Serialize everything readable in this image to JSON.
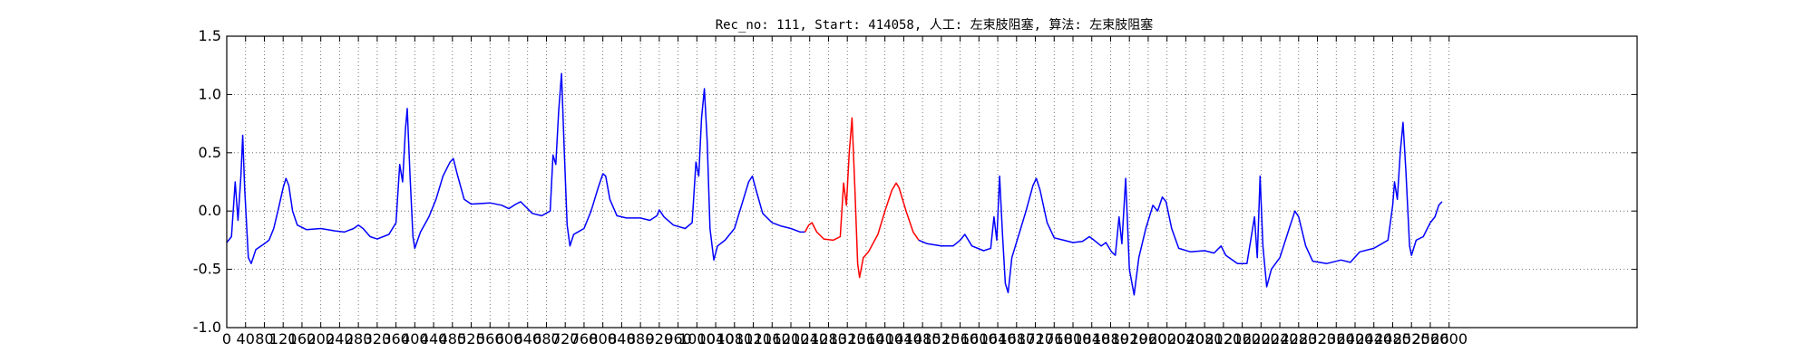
{
  "chart_data": {
    "type": "line",
    "title": "Rec_no: 111, Start: 414058, 人工: 左束肢阻塞, 算法: 左束肢阻塞",
    "xlabel": "",
    "ylabel": "",
    "xlim": [
      0,
      3000
    ],
    "ylim": [
      -1.0,
      1.5
    ],
    "grid": true,
    "grid_style": "dotted",
    "yticks": [
      "-1.0",
      "-0.5",
      "0.0",
      "0.5",
      "1.0",
      "1.5"
    ],
    "xtick_values": [
      0,
      40,
      80,
      120,
      160,
      200,
      240,
      280,
      320,
      360,
      400,
      440,
      480,
      520,
      560,
      600,
      640,
      680,
      720,
      760,
      800,
      840,
      880,
      920,
      960,
      1000,
      1040,
      1080,
      1120,
      1160,
      1200,
      1240,
      1280,
      1320,
      1360,
      1400,
      1440,
      1480,
      1520,
      1560,
      1600,
      1640,
      1680,
      1720,
      1760,
      1800,
      1840,
      1880,
      1920,
      1960,
      2000,
      2040,
      2080,
      2120,
      2160,
      2200,
      2240,
      2280,
      2320,
      2360,
      2400,
      2440,
      2480,
      2520,
      2560,
      2600
    ],
    "series": [
      {
        "color": "#0000ff",
        "points": [
          [
            0,
            -0.27
          ],
          [
            10,
            -0.22
          ],
          [
            18,
            0.25
          ],
          [
            24,
            -0.08
          ],
          [
            30,
            0.3
          ],
          [
            34,
            0.65
          ],
          [
            38,
            0.2
          ],
          [
            46,
            -0.4
          ],
          [
            52,
            -0.45
          ],
          [
            62,
            -0.33
          ],
          [
            80,
            -0.28
          ],
          [
            90,
            -0.25
          ],
          [
            100,
            -0.15
          ],
          [
            110,
            0.02
          ],
          [
            120,
            0.2
          ],
          [
            126,
            0.28
          ],
          [
            132,
            0.22
          ],
          [
            140,
            0.0
          ],
          [
            150,
            -0.12
          ],
          [
            170,
            -0.16
          ],
          [
            200,
            -0.15
          ],
          [
            230,
            -0.17
          ],
          [
            250,
            -0.18
          ],
          [
            270,
            -0.15
          ],
          [
            280,
            -0.12
          ],
          [
            290,
            -0.15
          ],
          [
            305,
            -0.22
          ],
          [
            320,
            -0.24
          ],
          [
            345,
            -0.2
          ],
          [
            360,
            -0.1
          ],
          [
            368,
            0.4
          ],
          [
            374,
            0.25
          ],
          [
            380,
            0.7
          ],
          [
            384,
            0.88
          ],
          [
            390,
            0.3
          ],
          [
            396,
            -0.22
          ],
          [
            400,
            -0.32
          ],
          [
            412,
            -0.18
          ],
          [
            430,
            -0.05
          ],
          [
            445,
            0.1
          ],
          [
            460,
            0.3
          ],
          [
            475,
            0.42
          ],
          [
            482,
            0.45
          ],
          [
            490,
            0.32
          ],
          [
            505,
            0.1
          ],
          [
            520,
            0.06
          ],
          [
            560,
            0.07
          ],
          [
            585,
            0.05
          ],
          [
            600,
            0.02
          ],
          [
            615,
            0.06
          ],
          [
            625,
            0.08
          ],
          [
            635,
            0.04
          ],
          [
            650,
            -0.02
          ],
          [
            670,
            -0.04
          ],
          [
            688,
            0.0
          ],
          [
            694,
            0.48
          ],
          [
            700,
            0.4
          ],
          [
            706,
            0.85
          ],
          [
            712,
            1.18
          ],
          [
            718,
            0.5
          ],
          [
            724,
            -0.12
          ],
          [
            730,
            -0.3
          ],
          [
            738,
            -0.2
          ],
          [
            760,
            -0.15
          ],
          [
            775,
            0.0
          ],
          [
            790,
            0.2
          ],
          [
            800,
            0.32
          ],
          [
            806,
            0.3
          ],
          [
            815,
            0.1
          ],
          [
            830,
            -0.04
          ],
          [
            850,
            -0.06
          ],
          [
            880,
            -0.06
          ],
          [
            900,
            -0.08
          ],
          [
            915,
            -0.04
          ],
          [
            920,
            0.01
          ],
          [
            930,
            -0.05
          ],
          [
            950,
            -0.12
          ],
          [
            975,
            -0.15
          ],
          [
            990,
            -0.1
          ],
          [
            998,
            0.42
          ],
          [
            1004,
            0.3
          ],
          [
            1010,
            0.8
          ],
          [
            1016,
            1.05
          ],
          [
            1022,
            0.6
          ],
          [
            1028,
            -0.15
          ],
          [
            1036,
            -0.42
          ],
          [
            1044,
            -0.3
          ],
          [
            1060,
            -0.25
          ],
          [
            1080,
            -0.15
          ],
          [
            1095,
            0.05
          ],
          [
            1110,
            0.25
          ],
          [
            1118,
            0.3
          ],
          [
            1126,
            0.18
          ],
          [
            1140,
            -0.02
          ],
          [
            1160,
            -0.1
          ],
          [
            1180,
            -0.13
          ],
          [
            1200,
            -0.15
          ],
          [
            1220,
            -0.18
          ],
          [
            1230,
            -0.18
          ]
        ]
      },
      {
        "color": "#ff0000",
        "points": [
          [
            1230,
            -0.18
          ],
          [
            1238,
            -0.12
          ],
          [
            1245,
            -0.1
          ],
          [
            1255,
            -0.18
          ],
          [
            1270,
            -0.24
          ],
          [
            1290,
            -0.25
          ],
          [
            1305,
            -0.22
          ],
          [
            1312,
            0.24
          ],
          [
            1318,
            0.05
          ],
          [
            1324,
            0.5
          ],
          [
            1330,
            0.8
          ],
          [
            1336,
            0.2
          ],
          [
            1342,
            -0.45
          ],
          [
            1346,
            -0.57
          ],
          [
            1354,
            -0.4
          ],
          [
            1365,
            -0.35
          ],
          [
            1385,
            -0.2
          ],
          [
            1400,
            0.0
          ],
          [
            1415,
            0.18
          ],
          [
            1424,
            0.24
          ],
          [
            1430,
            0.2
          ],
          [
            1445,
            0.0
          ],
          [
            1460,
            -0.18
          ],
          [
            1472,
            -0.25
          ]
        ]
      },
      {
        "color": "#0000ff",
        "points": [
          [
            1472,
            -0.25
          ],
          [
            1490,
            -0.28
          ],
          [
            1520,
            -0.3
          ],
          [
            1545,
            -0.3
          ],
          [
            1560,
            -0.25
          ],
          [
            1570,
            -0.2
          ],
          [
            1585,
            -0.3
          ],
          [
            1610,
            -0.34
          ],
          [
            1625,
            -0.32
          ],
          [
            1632,
            -0.05
          ],
          [
            1638,
            -0.25
          ],
          [
            1644,
            0.3
          ],
          [
            1650,
            -0.2
          ],
          [
            1656,
            -0.62
          ],
          [
            1662,
            -0.7
          ],
          [
            1670,
            -0.4
          ],
          [
            1685,
            -0.2
          ],
          [
            1700,
            0.0
          ],
          [
            1715,
            0.22
          ],
          [
            1722,
            0.28
          ],
          [
            1730,
            0.18
          ],
          [
            1745,
            -0.1
          ],
          [
            1760,
            -0.23
          ],
          [
            1780,
            -0.25
          ],
          [
            1800,
            -0.27
          ],
          [
            1820,
            -0.26
          ],
          [
            1835,
            -0.22
          ],
          [
            1845,
            -0.25
          ],
          [
            1860,
            -0.3
          ],
          [
            1870,
            -0.27
          ],
          [
            1882,
            -0.35
          ],
          [
            1890,
            -0.38
          ],
          [
            1898,
            -0.05
          ],
          [
            1904,
            -0.28
          ],
          [
            1912,
            0.28
          ],
          [
            1920,
            -0.5
          ],
          [
            1930,
            -0.72
          ],
          [
            1940,
            -0.4
          ],
          [
            1955,
            -0.15
          ],
          [
            1970,
            0.05
          ],
          [
            1980,
            0.0
          ],
          [
            1990,
            0.12
          ],
          [
            1998,
            0.08
          ],
          [
            2010,
            -0.15
          ],
          [
            2025,
            -0.32
          ],
          [
            2050,
            -0.35
          ],
          [
            2080,
            -0.34
          ],
          [
            2100,
            -0.36
          ],
          [
            2115,
            -0.3
          ],
          [
            2125,
            -0.38
          ],
          [
            2150,
            -0.45
          ],
          [
            2170,
            -0.45
          ],
          [
            2180,
            -0.2
          ],
          [
            2186,
            -0.05
          ],
          [
            2192,
            -0.4
          ],
          [
            2198,
            0.3
          ],
          [
            2204,
            -0.3
          ],
          [
            2212,
            -0.65
          ],
          [
            2222,
            -0.5
          ],
          [
            2240,
            -0.4
          ],
          [
            2260,
            -0.15
          ],
          [
            2272,
            0.0
          ],
          [
            2280,
            -0.05
          ],
          [
            2295,
            -0.3
          ],
          [
            2310,
            -0.43
          ],
          [
            2340,
            -0.45
          ],
          [
            2370,
            -0.42
          ],
          [
            2390,
            -0.44
          ],
          [
            2410,
            -0.35
          ],
          [
            2440,
            -0.32
          ],
          [
            2470,
            -0.25
          ],
          [
            2480,
            0.05
          ],
          [
            2484,
            0.25
          ],
          [
            2490,
            0.1
          ],
          [
            2496,
            0.5
          ],
          [
            2502,
            0.76
          ],
          [
            2508,
            0.35
          ],
          [
            2516,
            -0.3
          ],
          [
            2520,
            -0.38
          ],
          [
            2530,
            -0.25
          ],
          [
            2545,
            -0.22
          ],
          [
            2560,
            -0.1
          ],
          [
            2570,
            -0.05
          ],
          [
            2578,
            0.05
          ],
          [
            2585,
            0.08
          ]
        ]
      }
    ]
  }
}
